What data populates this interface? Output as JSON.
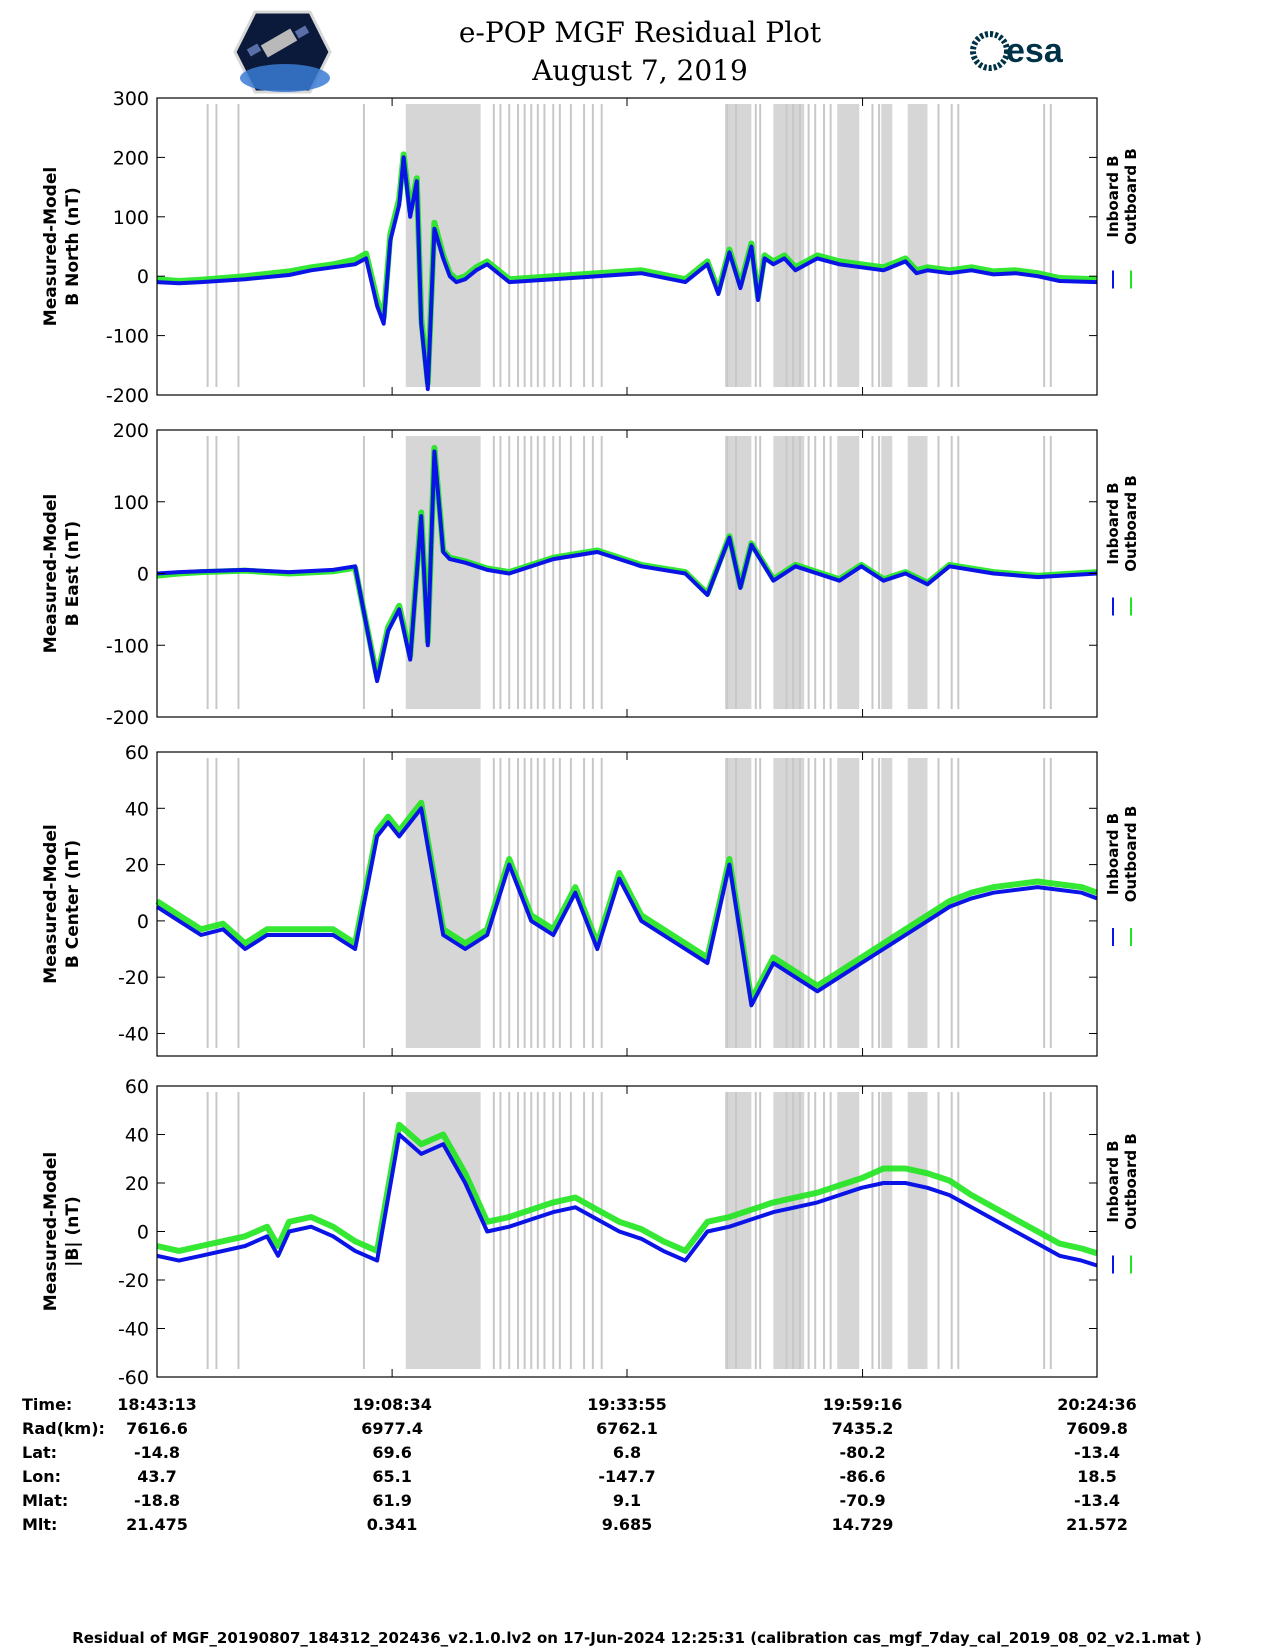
{
  "header": {
    "title_line1": "e-POP MGF Residual Plot",
    "title_line2": "August 7, 2019",
    "left_logo": "cassiope-mission-logo",
    "right_logo_text": "esa",
    "right_logo_color": "#003247"
  },
  "legend": {
    "inboard": "Inboard B",
    "outboard": "Outboard B"
  },
  "colors": {
    "inboard": "#0a14e6",
    "outboard": "#1ee61e",
    "shade": "#d6d6d6",
    "gap": "#c8c8c8"
  },
  "chart_data": [
    {
      "type": "line",
      "ylabel": [
        "Measured-Model",
        "B North (nT)"
      ],
      "ylim": [
        -200,
        300
      ],
      "yticks": [
        300,
        200,
        100,
        0,
        -100,
        -200
      ],
      "series": [
        {
          "name": "Inboard B",
          "x": [
            0,
            1,
            2,
            4,
            6,
            7,
            8,
            9,
            9.5,
            10,
            10.3,
            10.6,
            11,
            11.2,
            11.5,
            11.8,
            12,
            12.3,
            12.6,
            13,
            13.3,
            13.6,
            14,
            14.5,
            15,
            16,
            18,
            20,
            22,
            24,
            25,
            25.5,
            26,
            26.5,
            27,
            27.3,
            27.6,
            28,
            28.5,
            29,
            30,
            31,
            32,
            33,
            34,
            34.5,
            35,
            36,
            37,
            38,
            39,
            40,
            41,
            42.7
          ],
          "y": [
            -10,
            -12,
            -10,
            -5,
            2,
            10,
            15,
            20,
            30,
            -50,
            -80,
            60,
            120,
            200,
            100,
            160,
            -80,
            -190,
            80,
            30,
            0,
            -10,
            -5,
            10,
            20,
            -10,
            -5,
            0,
            5,
            -10,
            20,
            -30,
            40,
            -20,
            50,
            -40,
            30,
            20,
            30,
            10,
            30,
            20,
            15,
            10,
            25,
            5,
            10,
            5,
            10,
            3,
            5,
            0,
            -8,
            -10
          ]
        },
        {
          "name": "Outboard B",
          "x": [
            0,
            1,
            2,
            4,
            6,
            7,
            8,
            9,
            9.5,
            10,
            10.3,
            10.6,
            11,
            11.2,
            11.5,
            11.8,
            12,
            12.3,
            12.6,
            13,
            13.3,
            13.6,
            14,
            14.5,
            15,
            16,
            18,
            20,
            22,
            24,
            25,
            25.5,
            26,
            26.5,
            27,
            27.3,
            27.6,
            28,
            28.5,
            29,
            30,
            31,
            32,
            33,
            34,
            34.5,
            35,
            36,
            37,
            38,
            39,
            40,
            41,
            42.7
          ],
          "y": [
            -5,
            -8,
            -6,
            0,
            8,
            15,
            20,
            28,
            38,
            -40,
            -70,
            70,
            130,
            205,
            110,
            165,
            -70,
            -180,
            90,
            35,
            5,
            -5,
            0,
            15,
            25,
            -5,
            0,
            5,
            10,
            -5,
            25,
            -25,
            45,
            -15,
            55,
            -35,
            35,
            25,
            35,
            15,
            35,
            25,
            20,
            15,
            30,
            10,
            15,
            10,
            15,
            8,
            10,
            5,
            -3,
            -5
          ]
        }
      ]
    },
    {
      "type": "line",
      "ylabel": [
        "Measured-Model",
        "B East (nT)"
      ],
      "ylim": [
        -200,
        200
      ],
      "yticks": [
        200,
        100,
        0,
        -100,
        -200
      ],
      "series": [
        {
          "name": "Inboard B",
          "x": [
            0,
            1,
            2,
            4,
            6,
            8,
            9,
            10,
            10.5,
            11,
            11.5,
            12,
            12.3,
            12.6,
            13,
            13.3,
            14,
            15,
            16,
            18,
            20,
            22,
            24,
            25,
            26,
            26.5,
            27,
            28,
            29,
            30,
            31,
            32,
            33,
            34,
            35,
            36,
            38,
            40,
            42.7
          ],
          "y": [
            0,
            2,
            3,
            5,
            2,
            5,
            10,
            -150,
            -80,
            -50,
            -120,
            80,
            -100,
            170,
            30,
            20,
            15,
            5,
            0,
            20,
            30,
            10,
            0,
            -30,
            50,
            -20,
            40,
            -10,
            10,
            0,
            -10,
            10,
            -10,
            0,
            -15,
            10,
            0,
            -5,
            0
          ]
        },
        {
          "name": "Outboard B",
          "x": [
            0,
            1,
            2,
            4,
            6,
            8,
            9,
            10,
            10.5,
            11,
            11.5,
            12,
            12.3,
            12.6,
            13,
            13.3,
            14,
            15,
            16,
            18,
            20,
            22,
            24,
            25,
            26,
            26.5,
            27,
            28,
            29,
            30,
            31,
            32,
            33,
            34,
            35,
            36,
            38,
            40,
            42.7
          ],
          "y": [
            -3,
            0,
            2,
            4,
            0,
            3,
            8,
            -145,
            -75,
            -45,
            -115,
            85,
            -95,
            175,
            32,
            22,
            17,
            7,
            2,
            22,
            32,
            12,
            2,
            -28,
            52,
            -18,
            42,
            -8,
            12,
            2,
            -8,
            12,
            -8,
            2,
            -13,
            12,
            2,
            -3,
            2
          ]
        }
      ]
    },
    {
      "type": "line",
      "ylabel": [
        "Measured-Model",
        "B Center (nT)"
      ],
      "ylim": [
        -48,
        60
      ],
      "yticks": [
        60,
        40,
        20,
        0,
        -20,
        -40
      ],
      "series": [
        {
          "name": "Inboard B",
          "x": [
            0,
            1,
            2,
            3,
            4,
            5,
            6,
            8,
            9,
            10,
            10.5,
            11,
            12,
            13,
            14,
            15,
            16,
            17,
            18,
            19,
            20,
            21,
            22,
            24,
            25,
            26,
            27,
            28,
            29,
            30,
            31,
            32,
            33,
            34,
            35,
            36,
            37,
            38,
            40,
            42,
            42.7
          ],
          "y": [
            5,
            0,
            -5,
            -3,
            -10,
            -5,
            -5,
            -5,
            -10,
            30,
            35,
            30,
            40,
            -5,
            -10,
            -5,
            20,
            0,
            -5,
            10,
            -10,
            15,
            0,
            -10,
            -15,
            20,
            -30,
            -15,
            -20,
            -25,
            -20,
            -15,
            -10,
            -5,
            0,
            5,
            8,
            10,
            12,
            10,
            8
          ]
        },
        {
          "name": "Outboard B",
          "x": [
            0,
            1,
            2,
            3,
            4,
            5,
            6,
            8,
            9,
            10,
            10.5,
            11,
            12,
            13,
            14,
            15,
            16,
            17,
            18,
            19,
            20,
            21,
            22,
            24,
            25,
            26,
            27,
            28,
            29,
            30,
            31,
            32,
            33,
            34,
            35,
            36,
            37,
            38,
            40,
            42,
            42.7
          ],
          "y": [
            7,
            2,
            -3,
            -1,
            -8,
            -3,
            -3,
            -3,
            -8,
            32,
            37,
            32,
            42,
            -3,
            -8,
            -3,
            22,
            2,
            -3,
            12,
            -8,
            17,
            2,
            -8,
            -13,
            22,
            -28,
            -13,
            -18,
            -23,
            -18,
            -13,
            -8,
            -3,
            2,
            7,
            10,
            12,
            14,
            12,
            10
          ]
        }
      ]
    },
    {
      "type": "line",
      "ylabel": [
        "Measured-Model",
        "|B| (nT)"
      ],
      "ylim": [
        -60,
        60
      ],
      "yticks": [
        60,
        40,
        20,
        0,
        -20,
        -40,
        -60
      ],
      "series": [
        {
          "name": "Inboard B",
          "x": [
            0,
            1,
            2,
            4,
            5,
            5.5,
            6,
            7,
            8,
            9,
            10,
            11,
            12,
            13,
            14,
            15,
            16,
            17,
            18,
            19,
            20,
            21,
            22,
            23,
            24,
            25,
            26,
            27,
            28,
            29,
            30,
            31,
            32,
            33,
            34,
            35,
            36,
            37,
            38,
            39,
            40,
            41,
            42,
            42.7
          ],
          "y": [
            -10,
            -12,
            -10,
            -6,
            -2,
            -10,
            0,
            2,
            -2,
            -8,
            -12,
            40,
            32,
            36,
            20,
            0,
            2,
            5,
            8,
            10,
            5,
            0,
            -3,
            -8,
            -12,
            0,
            2,
            5,
            8,
            10,
            12,
            15,
            18,
            20,
            20,
            18,
            15,
            10,
            5,
            0,
            -5,
            -10,
            -12,
            -14
          ]
        },
        {
          "name": "Outboard B",
          "x": [
            0,
            1,
            2,
            4,
            5,
            5.5,
            6,
            7,
            8,
            9,
            10,
            11,
            12,
            13,
            14,
            15,
            16,
            17,
            18,
            19,
            20,
            21,
            22,
            23,
            24,
            25,
            26,
            27,
            28,
            29,
            30,
            31,
            32,
            33,
            34,
            35,
            36,
            37,
            38,
            39,
            40,
            41,
            42,
            42.7
          ],
          "y": [
            -6,
            -8,
            -6,
            -2,
            2,
            -6,
            4,
            6,
            2,
            -4,
            -8,
            44,
            36,
            40,
            24,
            4,
            6,
            9,
            12,
            14,
            9,
            4,
            1,
            -4,
            -8,
            4,
            6,
            9,
            12,
            14,
            16,
            19,
            22,
            26,
            26,
            24,
            21,
            15,
            10,
            5,
            0,
            -5,
            -7,
            -9
          ]
        }
      ]
    }
  ],
  "shading": {
    "gray_bands_min": [
      [
        11.3,
        14.7
      ],
      [
        25.8,
        27
      ],
      [
        28,
        29.4
      ],
      [
        30.9,
        31.9
      ],
      [
        32.9,
        33.4
      ],
      [
        34.1,
        35
      ]
    ],
    "gap_lines_min": [
      2.3,
      2.7,
      3.7,
      9.4,
      15.3,
      15.6,
      16.0,
      16.4,
      16.7,
      17.0,
      17.3,
      17.6,
      18.0,
      18.3,
      18.8,
      19.4,
      19.8,
      20.2,
      25.9,
      26.3,
      27.2,
      27.4,
      28.6,
      28.9,
      29.2,
      29.6,
      29.9,
      30.3,
      30.6,
      32.5,
      32.8,
      35.5,
      36.1,
      36.4,
      40.3,
      40.6
    ]
  },
  "time_axis": {
    "xlim_min": [
      0,
      42.7
    ],
    "tick_positions_min": [
      0,
      10.68,
      21.35,
      32.05,
      42.7
    ],
    "rows": [
      {
        "label": "Time:",
        "values": [
          "18:43:13",
          "19:08:34",
          "19:33:55",
          "19:59:16",
          "20:24:36"
        ]
      },
      {
        "label": "Rad(km):",
        "values": [
          "7616.6",
          "6977.4",
          "6762.1",
          "7435.2",
          "7609.8"
        ]
      },
      {
        "label": "Lat:",
        "values": [
          "-14.8",
          "69.6",
          "6.8",
          "-80.2",
          "-13.4"
        ]
      },
      {
        "label": "Lon:",
        "values": [
          "43.7",
          "65.1",
          "-147.7",
          "-86.6",
          "18.5"
        ]
      },
      {
        "label": "Mlat:",
        "values": [
          "-18.8",
          "61.9",
          "9.1",
          "-70.9",
          "-13.4"
        ]
      },
      {
        "label": "Mlt:",
        "values": [
          "21.475",
          "0.341",
          "9.685",
          "14.729",
          "21.572"
        ]
      }
    ]
  },
  "footer": "Residual of MGF_20190807_184312_202436_v2.1.0.lv2 on 17-Jun-2024 12:25:31 (calibration cas_mgf_7day_cal_2019_08_02_v2.1.mat )"
}
